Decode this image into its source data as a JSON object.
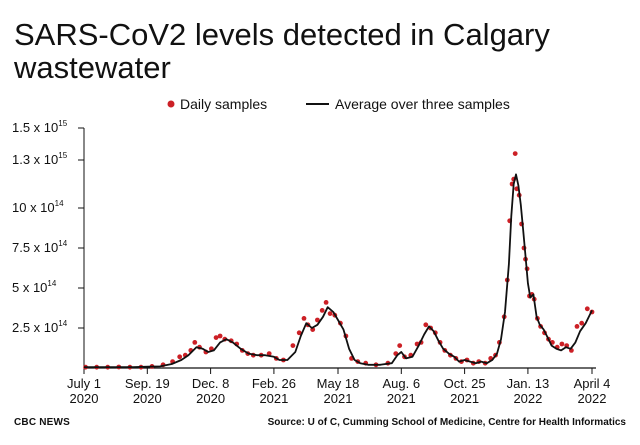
{
  "header": {
    "title": "SARS-CoV2 levels detected in Calgary wastewater"
  },
  "footer": {
    "credit": "CBC NEWS",
    "source": "Source: U of C, Cumming School of Medicine, Centre for Health Informatics"
  },
  "colors": {
    "dots": "#cc2026",
    "line": "#111111",
    "axis": "#111111",
    "grid": "#dddddd"
  },
  "chart_data": {
    "type": "line",
    "title": "SARS-CoV2 levels detected in Calgary wastewater",
    "xlabel": "",
    "ylabel": "",
    "x_range": [
      "2020-07-01",
      "2022-04-04"
    ],
    "ylim": [
      0,
      15
    ],
    "y_unit_exponent": 14,
    "y_ticks": [
      {
        "value": 2.5,
        "mantissa": "2.5 x 10",
        "exp": "14"
      },
      {
        "value": 5,
        "mantissa": "5 x 10",
        "exp": "14"
      },
      {
        "value": 7.5,
        "mantissa": "7.5 x 10",
        "exp": "14"
      },
      {
        "value": 10,
        "mantissa": "10 x 10",
        "exp": "14"
      },
      {
        "value": 13,
        "mantissa": "1.3 x 10",
        "exp": "15"
      },
      {
        "value": 15,
        "mantissa": "1.5 x 10",
        "exp": "15"
      }
    ],
    "x_ticks": [
      {
        "date": "2020-07-01",
        "label": "July 1",
        "year": "2020"
      },
      {
        "date": "2020-09-19",
        "label": "Sep. 19",
        "year": "2020"
      },
      {
        "date": "2020-12-08",
        "label": "Dec. 8",
        "year": "2020"
      },
      {
        "date": "2021-02-26",
        "label": "Feb. 26",
        "year": "2021"
      },
      {
        "date": "2021-05-18",
        "label": "May 18",
        "year": "2021"
      },
      {
        "date": "2021-08-06",
        "label": "Aug. 6",
        "year": "2021"
      },
      {
        "date": "2021-10-25",
        "label": "Oct. 25",
        "year": "2021"
      },
      {
        "date": "2022-01-13",
        "label": "Jan. 13",
        "year": "2022"
      },
      {
        "date": "2022-04-04",
        "label": "April 4",
        "year": "2022"
      }
    ],
    "legend": {
      "placement": "top",
      "entries": [
        "Daily samples",
        "Average over three samples"
      ]
    },
    "grid": false,
    "series": [
      {
        "name": "Average over three samples",
        "points": [
          [
            "2020-07-01",
            0.05
          ],
          [
            "2020-08-01",
            0.05
          ],
          [
            "2020-09-01",
            0.05
          ],
          [
            "2020-09-20",
            0.08
          ],
          [
            "2020-10-05",
            0.1
          ],
          [
            "2020-10-20",
            0.25
          ],
          [
            "2020-11-01",
            0.5
          ],
          [
            "2020-11-10",
            0.8
          ],
          [
            "2020-11-20",
            1.3
          ],
          [
            "2020-11-28",
            1.2
          ],
          [
            "2020-12-05",
            1.0
          ],
          [
            "2020-12-12",
            1.1
          ],
          [
            "2020-12-20",
            1.6
          ],
          [
            "2020-12-28",
            1.8
          ],
          [
            "2021-01-05",
            1.6
          ],
          [
            "2021-01-15",
            1.2
          ],
          [
            "2021-01-25",
            0.9
          ],
          [
            "2021-02-05",
            0.8
          ],
          [
            "2021-02-15",
            0.8
          ],
          [
            "2021-02-26",
            0.7
          ],
          [
            "2021-03-05",
            0.5
          ],
          [
            "2021-03-15",
            0.5
          ],
          [
            "2021-03-25",
            1.0
          ],
          [
            "2021-04-01",
            2.0
          ],
          [
            "2021-04-08",
            2.8
          ],
          [
            "2021-04-15",
            2.5
          ],
          [
            "2021-04-22",
            2.7
          ],
          [
            "2021-04-29",
            3.2
          ],
          [
            "2021-05-05",
            3.8
          ],
          [
            "2021-05-12",
            3.5
          ],
          [
            "2021-05-18",
            3.0
          ],
          [
            "2021-05-25",
            2.4
          ],
          [
            "2021-06-01",
            1.2
          ],
          [
            "2021-06-08",
            0.5
          ],
          [
            "2021-06-15",
            0.3
          ],
          [
            "2021-06-25",
            0.2
          ],
          [
            "2021-07-10",
            0.2
          ],
          [
            "2021-07-25",
            0.3
          ],
          [
            "2021-08-01",
            0.8
          ],
          [
            "2021-08-06",
            1.0
          ],
          [
            "2021-08-12",
            0.6
          ],
          [
            "2021-08-20",
            0.7
          ],
          [
            "2021-08-28",
            1.4
          ],
          [
            "2021-09-04",
            2.1
          ],
          [
            "2021-09-10",
            2.6
          ],
          [
            "2021-09-16",
            2.3
          ],
          [
            "2021-09-22",
            1.7
          ],
          [
            "2021-09-28",
            1.2
          ],
          [
            "2021-10-05",
            0.9
          ],
          [
            "2021-10-12",
            0.7
          ],
          [
            "2021-10-18",
            0.4
          ],
          [
            "2021-10-25",
            0.5
          ],
          [
            "2021-11-01",
            0.4
          ],
          [
            "2021-11-08",
            0.3
          ],
          [
            "2021-11-15",
            0.4
          ],
          [
            "2021-11-22",
            0.3
          ],
          [
            "2021-11-29",
            0.5
          ],
          [
            "2021-12-05",
            0.9
          ],
          [
            "2021-12-10",
            1.8
          ],
          [
            "2021-12-15",
            3.5
          ],
          [
            "2021-12-20",
            6.5
          ],
          [
            "2021-12-23",
            9.5
          ],
          [
            "2021-12-26",
            11.5
          ],
          [
            "2021-12-29",
            12.1
          ],
          [
            "2022-01-01",
            11.4
          ],
          [
            "2022-01-04",
            10.2
          ],
          [
            "2022-01-07",
            8.6
          ],
          [
            "2022-01-10",
            7.0
          ],
          [
            "2022-01-13",
            5.3
          ],
          [
            "2022-01-16",
            4.4
          ],
          [
            "2022-01-20",
            4.6
          ],
          [
            "2022-01-24",
            3.2
          ],
          [
            "2022-01-28",
            2.7
          ],
          [
            "2022-02-02",
            2.4
          ],
          [
            "2022-02-07",
            1.9
          ],
          [
            "2022-02-12",
            1.4
          ],
          [
            "2022-02-18",
            1.2
          ],
          [
            "2022-02-24",
            1.1
          ],
          [
            "2022-03-02",
            1.3
          ],
          [
            "2022-03-08",
            1.2
          ],
          [
            "2022-03-14",
            1.6
          ],
          [
            "2022-03-20",
            2.3
          ],
          [
            "2022-03-27",
            2.8
          ],
          [
            "2022-04-04",
            3.6
          ]
        ]
      },
      {
        "name": "Daily samples",
        "points": [
          [
            "2020-07-03",
            0.05
          ],
          [
            "2020-07-17",
            0.05
          ],
          [
            "2020-07-31",
            0.05
          ],
          [
            "2020-08-14",
            0.06
          ],
          [
            "2020-08-28",
            0.05
          ],
          [
            "2020-09-11",
            0.05
          ],
          [
            "2020-09-25",
            0.1
          ],
          [
            "2020-10-09",
            0.2
          ],
          [
            "2020-10-21",
            0.4
          ],
          [
            "2020-10-30",
            0.7
          ],
          [
            "2020-11-06",
            0.8
          ],
          [
            "2020-11-13",
            1.1
          ],
          [
            "2020-11-18",
            1.6
          ],
          [
            "2020-11-24",
            1.3
          ],
          [
            "2020-12-02",
            1.0
          ],
          [
            "2020-12-09",
            1.2
          ],
          [
            "2020-12-15",
            1.9
          ],
          [
            "2020-12-20",
            2.0
          ],
          [
            "2020-12-26",
            1.8
          ],
          [
            "2021-01-03",
            1.7
          ],
          [
            "2021-01-10",
            1.5
          ],
          [
            "2021-01-17",
            1.1
          ],
          [
            "2021-01-24",
            0.9
          ],
          [
            "2021-01-31",
            0.8
          ],
          [
            "2021-02-10",
            0.8
          ],
          [
            "2021-02-20",
            0.9
          ],
          [
            "2021-03-01",
            0.6
          ],
          [
            "2021-03-10",
            0.5
          ],
          [
            "2021-03-22",
            1.4
          ],
          [
            "2021-03-30",
            2.2
          ],
          [
            "2021-04-05",
            3.1
          ],
          [
            "2021-04-10",
            2.7
          ],
          [
            "2021-04-16",
            2.4
          ],
          [
            "2021-04-22",
            3.0
          ],
          [
            "2021-04-28",
            3.6
          ],
          [
            "2021-05-03",
            4.1
          ],
          [
            "2021-05-08",
            3.4
          ],
          [
            "2021-05-14",
            3.3
          ],
          [
            "2021-05-21",
            2.8
          ],
          [
            "2021-05-28",
            2.0
          ],
          [
            "2021-06-04",
            0.6
          ],
          [
            "2021-06-12",
            0.4
          ],
          [
            "2021-06-22",
            0.3
          ],
          [
            "2021-07-05",
            0.2
          ],
          [
            "2021-07-20",
            0.3
          ],
          [
            "2021-07-30",
            0.9
          ],
          [
            "2021-08-04",
            1.4
          ],
          [
            "2021-08-10",
            0.7
          ],
          [
            "2021-08-18",
            0.8
          ],
          [
            "2021-08-26",
            1.5
          ],
          [
            "2021-08-31",
            1.6
          ],
          [
            "2021-09-06",
            2.7
          ],
          [
            "2021-09-12",
            2.5
          ],
          [
            "2021-09-18",
            2.2
          ],
          [
            "2021-09-24",
            1.6
          ],
          [
            "2021-09-30",
            1.1
          ],
          [
            "2021-10-07",
            0.8
          ],
          [
            "2021-10-14",
            0.6
          ],
          [
            "2021-10-21",
            0.4
          ],
          [
            "2021-10-28",
            0.5
          ],
          [
            "2021-11-05",
            0.3
          ],
          [
            "2021-11-12",
            0.4
          ],
          [
            "2021-11-20",
            0.3
          ],
          [
            "2021-11-27",
            0.6
          ],
          [
            "2021-12-03",
            0.8
          ],
          [
            "2021-12-08",
            1.6
          ],
          [
            "2021-12-14",
            3.2
          ],
          [
            "2021-12-18",
            5.5
          ],
          [
            "2021-12-21",
            9.2
          ],
          [
            "2021-12-24",
            11.5
          ],
          [
            "2021-12-26",
            11.8
          ],
          [
            "2021-12-28",
            13.4
          ],
          [
            "2021-12-30",
            11.2
          ],
          [
            "2022-01-02",
            10.8
          ],
          [
            "2022-01-05",
            9.0
          ],
          [
            "2022-01-08",
            7.5
          ],
          [
            "2022-01-10",
            6.8
          ],
          [
            "2022-01-12",
            6.2
          ],
          [
            "2022-01-15",
            4.5
          ],
          [
            "2022-01-18",
            4.6
          ],
          [
            "2022-01-21",
            4.3
          ],
          [
            "2022-01-25",
            3.1
          ],
          [
            "2022-01-29",
            2.6
          ],
          [
            "2022-02-03",
            2.2
          ],
          [
            "2022-02-08",
            1.8
          ],
          [
            "2022-02-13",
            1.6
          ],
          [
            "2022-02-19",
            1.3
          ],
          [
            "2022-02-25",
            1.5
          ],
          [
            "2022-03-03",
            1.4
          ],
          [
            "2022-03-09",
            1.1
          ],
          [
            "2022-03-16",
            2.6
          ],
          [
            "2022-03-22",
            2.8
          ],
          [
            "2022-03-29",
            3.7
          ],
          [
            "2022-04-04",
            3.5
          ]
        ]
      }
    ]
  }
}
